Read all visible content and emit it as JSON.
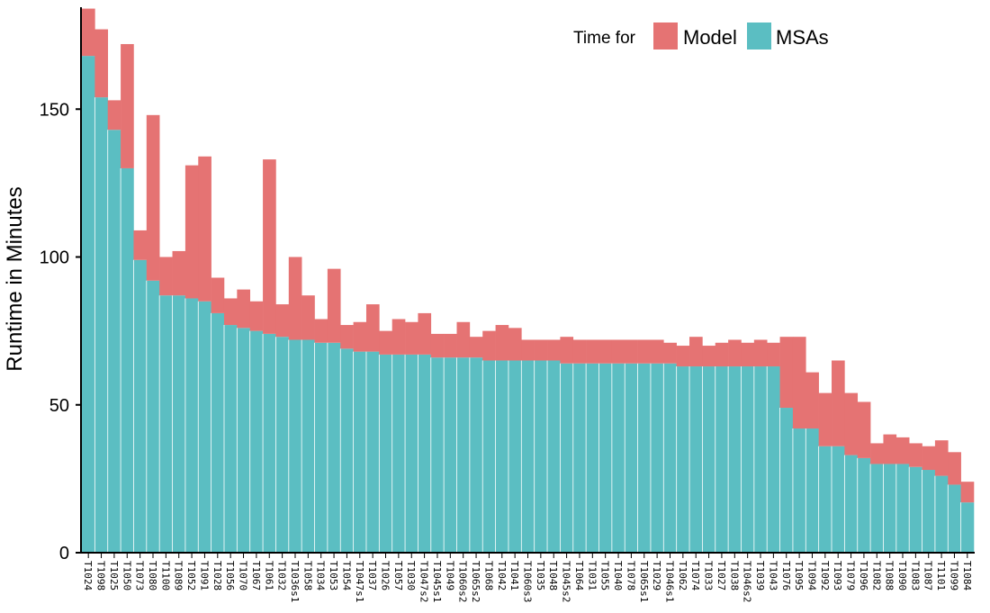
{
  "chart_data": {
    "type": "bar",
    "stacked": true,
    "xlabel": "",
    "ylabel": "Runtime in Minutes",
    "ylim": [
      0,
      183
    ],
    "yticks": [
      0,
      50,
      100,
      150
    ],
    "grid": false,
    "legend": {
      "title": "Time for",
      "placement": "top-right",
      "entries": [
        "Model",
        "MSAs"
      ]
    },
    "colors": {
      "Model": "#E57373",
      "MSAs": "#5BBEC2"
    },
    "categories": [
      "T1024",
      "T1098",
      "T1025",
      "T1050",
      "T1073",
      "T1080",
      "T1100",
      "T1089",
      "T1052",
      "T1091",
      "T1028",
      "T1056",
      "T1070",
      "T1067",
      "T1061",
      "T1032",
      "T1036s1",
      "T1058",
      "T1034",
      "T1053",
      "T1054",
      "T1047s1",
      "T1037",
      "T1026",
      "T1057",
      "T1030",
      "T1047s2",
      "T1045s1",
      "T1049",
      "T1060s2",
      "T1065s2",
      "T1068",
      "T1042",
      "T1041",
      "T1060s3",
      "T1035",
      "T1048",
      "T1045s2",
      "T1064",
      "T1031",
      "T1055",
      "T1040",
      "T1078",
      "T1065s1",
      "T1029",
      "T1046s1",
      "T1062",
      "T1074",
      "T1033",
      "T1027",
      "T1038",
      "T1046s2",
      "T1039",
      "T1043",
      "T1076",
      "T1095",
      "T1094",
      "T1092",
      "T1093",
      "T1079",
      "T1096",
      "T1082",
      "T1088",
      "T1090",
      "T1083",
      "T1087",
      "T1101",
      "T1099",
      "T1084"
    ],
    "series": [
      {
        "name": "MSAs",
        "values": [
          168,
          154,
          143,
          130,
          99,
          92,
          87,
          87,
          86,
          85,
          81,
          77,
          76,
          75,
          74,
          73,
          72,
          72,
          71,
          71,
          69,
          68,
          68,
          67,
          67,
          67,
          67,
          66,
          66,
          66,
          66,
          65,
          65,
          65,
          65,
          65,
          65,
          64,
          64,
          64,
          64,
          64,
          64,
          64,
          64,
          64,
          63,
          63,
          63,
          63,
          63,
          63,
          63,
          63,
          49,
          42,
          42,
          36,
          36,
          33,
          32,
          30,
          30,
          30,
          29,
          28,
          26,
          23,
          17
        ]
      },
      {
        "name": "Model",
        "values": [
          16,
          23,
          10,
          42,
          10,
          56,
          13,
          15,
          45,
          49,
          12,
          9,
          13,
          10,
          59,
          11,
          28,
          15,
          8,
          25,
          8,
          10,
          16,
          8,
          12,
          11,
          14,
          8,
          8,
          12,
          7,
          10,
          12,
          11,
          7,
          7,
          7,
          9,
          8,
          8,
          8,
          8,
          8,
          8,
          8,
          7,
          7,
          10,
          7,
          8,
          9,
          8,
          9,
          8,
          24,
          31,
          19,
          18,
          29,
          21,
          19,
          7,
          10,
          9,
          8,
          8,
          12,
          11,
          7
        ]
      }
    ]
  }
}
